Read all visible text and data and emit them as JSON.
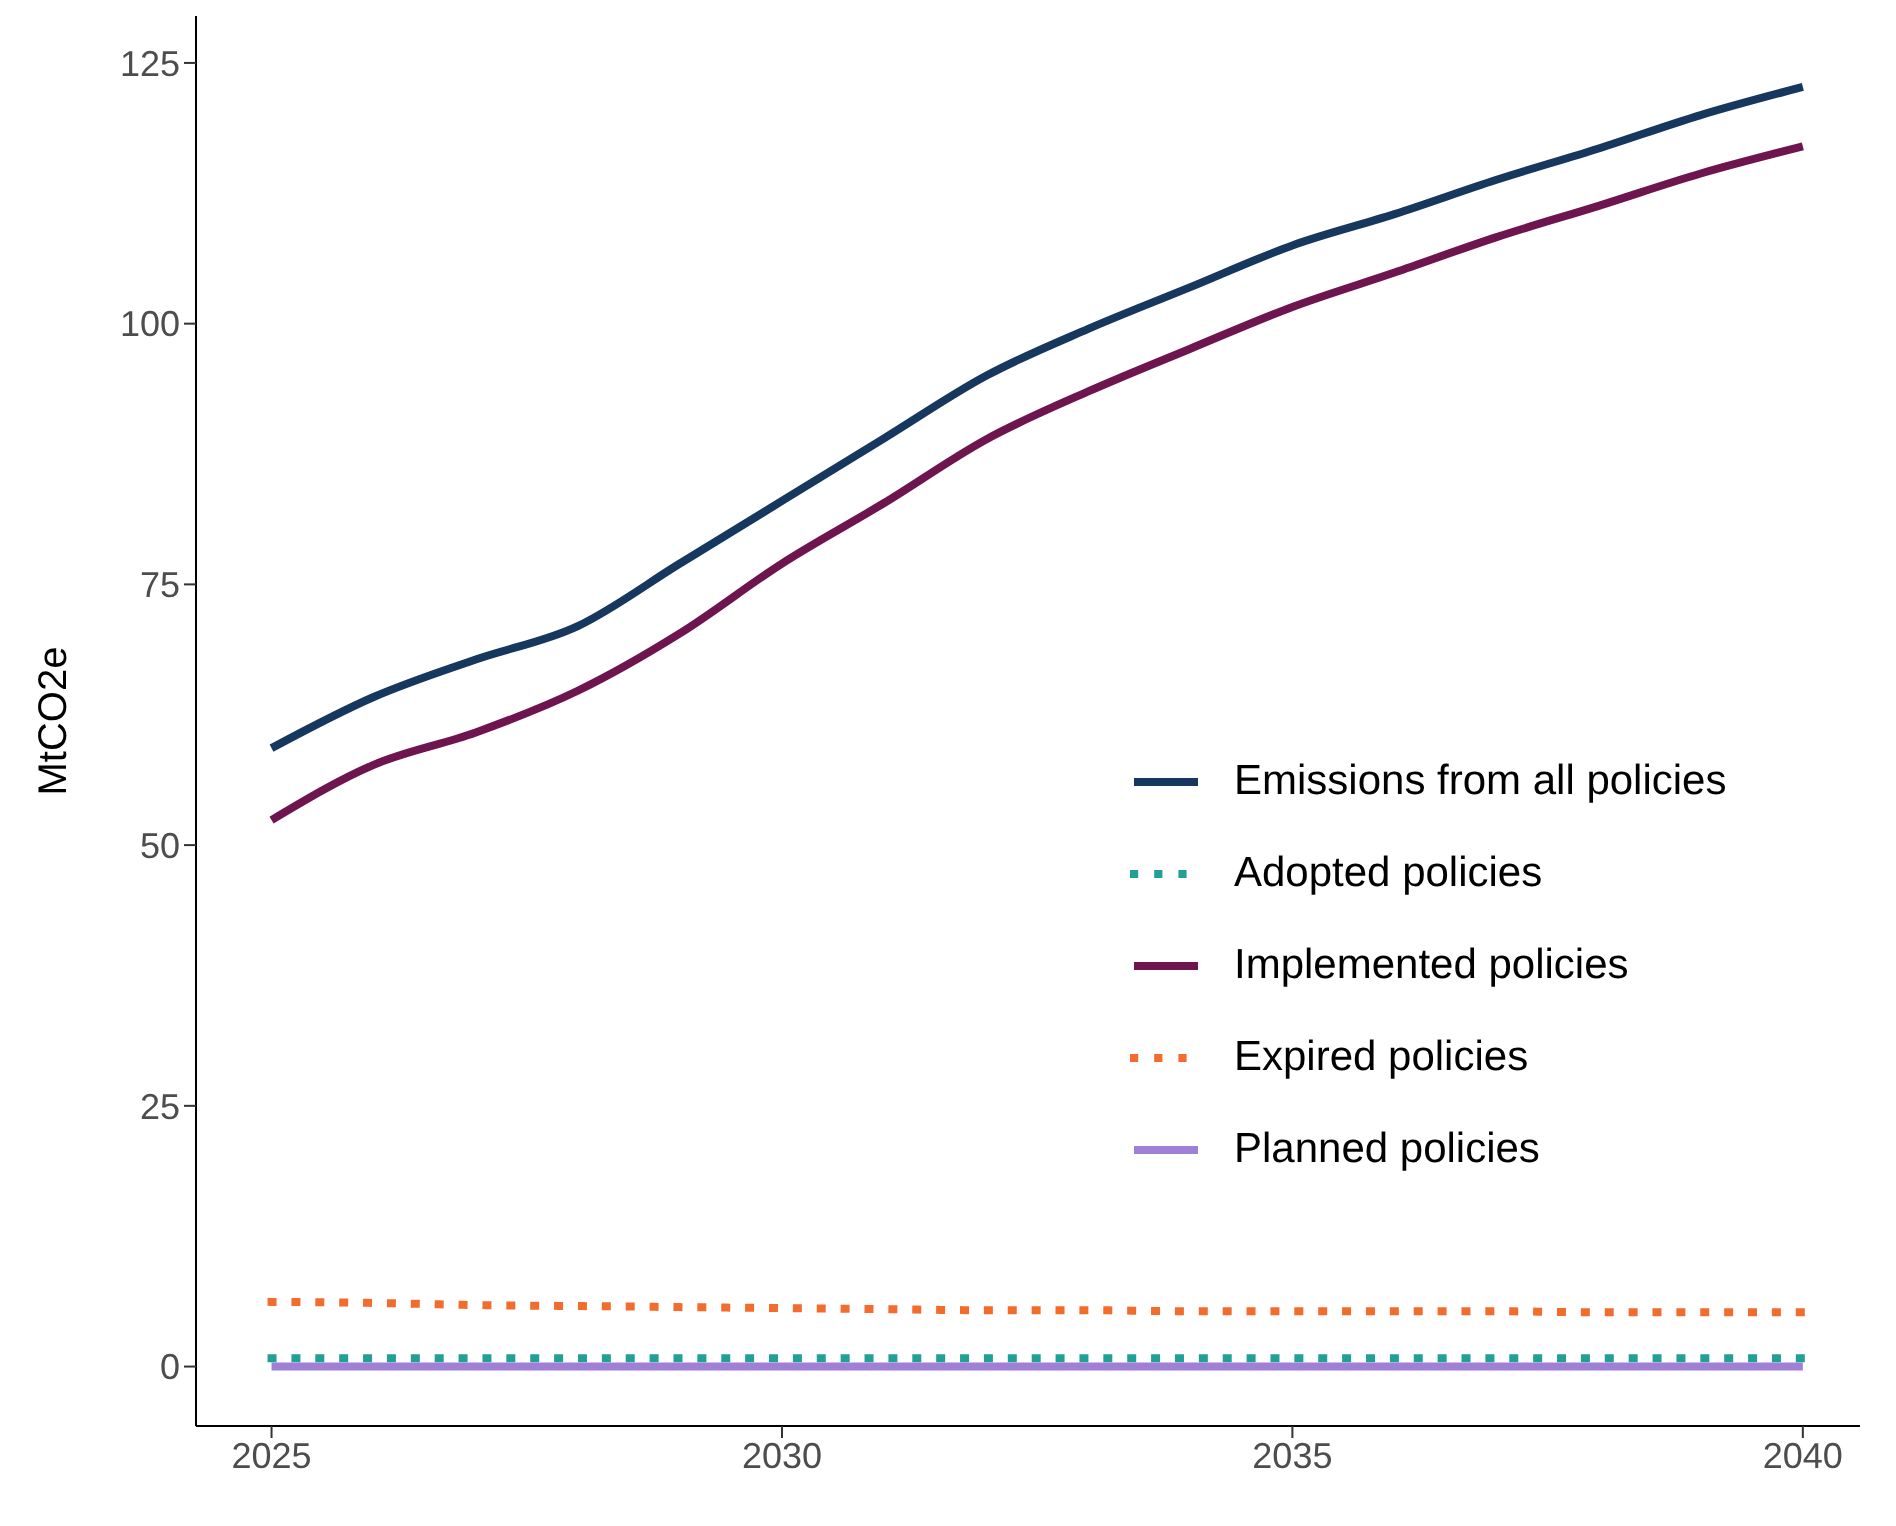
{
  "chart_data": {
    "type": "line",
    "ylabel": "MtCO2e",
    "x": [
      2025,
      2026,
      2027,
      2028,
      2029,
      2030,
      2031,
      2032,
      2033,
      2034,
      2035,
      2036,
      2037,
      2038,
      2039,
      2040
    ],
    "series": [
      {
        "name": "Emissions from all policies",
        "color": "#17385e",
        "line_style": "solid",
        "values": [
          59.3,
          64.2,
          67.8,
          71,
          77,
          83,
          89,
          95,
          99.5,
          103.5,
          107.5,
          110.5,
          113.8,
          116.8,
          120,
          122.7
        ]
      },
      {
        "name": "Adopted policies",
        "color": "#22a095",
        "line_style": "dotted",
        "values": [
          0.8,
          0.8,
          0.8,
          0.8,
          0.8,
          0.8,
          0.8,
          0.8,
          0.8,
          0.8,
          0.8,
          0.8,
          0.8,
          0.8,
          0.8,
          0.8
        ]
      },
      {
        "name": "Implemented policies",
        "color": "#6e1550",
        "line_style": "solid",
        "values": [
          52.4,
          57.7,
          60.8,
          64.8,
          70.3,
          77,
          82.8,
          88.9,
          93.5,
          97.6,
          101.6,
          104.9,
          108.3,
          111.3,
          114.4,
          117
        ]
      },
      {
        "name": "Expired policies",
        "color": "#f26d2d",
        "line_style": "dotted",
        "values": [
          6.2,
          6.1,
          5.9,
          5.8,
          5.7,
          5.6,
          5.5,
          5.4,
          5.4,
          5.3,
          5.3,
          5.3,
          5.3,
          5.2,
          5.2,
          5.2
        ]
      },
      {
        "name": "Planned policies",
        "color": "#a07fd6",
        "line_style": "solid",
        "values": [
          0,
          0,
          0,
          0,
          0,
          0,
          0,
          0,
          0,
          0,
          0,
          0,
          0,
          0,
          0,
          0
        ]
      }
    ],
    "xlim": [
      2024.26,
      2040.56
    ],
    "xticks": [
      2025,
      2030,
      2035,
      2040
    ],
    "ylim": [
      -5.7,
      129.5
    ],
    "yticks": [
      0,
      25,
      50,
      75,
      100,
      125
    ],
    "grid": false,
    "legend": "right",
    "marker": "none"
  }
}
